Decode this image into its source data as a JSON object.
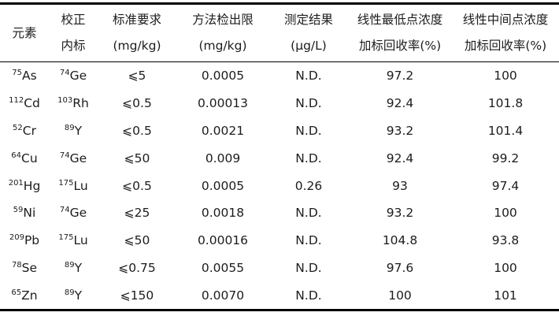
{
  "page": {
    "background_color": "#ffffff",
    "text_color": "#1c1c1c",
    "rule_color": "#000000"
  },
  "chart_data": {
    "type": "table",
    "title": "",
    "layout": {
      "style": "three-line booktabs table",
      "grid": "no vertical rules; thick top and bottom rules, thin rule under header",
      "columns_count": 7,
      "rows_count": 9
    },
    "headers": [
      {
        "line1": "元素",
        "line2": ""
      },
      {
        "line1": "校正",
        "line2": "内标"
      },
      {
        "line1": "标准要求",
        "line2": "(mg/kg)"
      },
      {
        "line1": "方法检出限",
        "line2": "(mg/kg)"
      },
      {
        "line1": "测定结果",
        "line2": "(μg/L)"
      },
      {
        "line1": "线性最低点浓度",
        "line2": "加标回收率(%)"
      },
      {
        "line1": "线性中间点浓度",
        "line2": "加标回收率(%)"
      }
    ],
    "rows": [
      {
        "isotope": "75",
        "element": "As",
        "istd_isotope": "74",
        "istd": "Ge",
        "standard_limit": "⩽5",
        "detection_limit": "0.0005",
        "result": "N.D.",
        "recovery_low": "97.2",
        "recovery_mid": "100"
      },
      {
        "isotope": "112",
        "element": "Cd",
        "istd_isotope": "103",
        "istd": "Rh",
        "standard_limit": "⩽0.5",
        "detection_limit": "0.00013",
        "result": "N.D.",
        "recovery_low": "92.4",
        "recovery_mid": "101.8"
      },
      {
        "isotope": "52",
        "element": "Cr",
        "istd_isotope": "89",
        "istd": "Y",
        "standard_limit": "⩽0.5",
        "detection_limit": "0.0021",
        "result": "N.D.",
        "recovery_low": "93.2",
        "recovery_mid": "101.4"
      },
      {
        "isotope": "64",
        "element": "Cu",
        "istd_isotope": "74",
        "istd": "Ge",
        "standard_limit": "⩽50",
        "detection_limit": "0.009",
        "result": "N.D.",
        "recovery_low": "92.4",
        "recovery_mid": "99.2"
      },
      {
        "isotope": "201",
        "element": "Hg",
        "istd_isotope": "175",
        "istd": "Lu",
        "standard_limit": "⩽0.5",
        "detection_limit": "0.0005",
        "result": "0.26",
        "recovery_low": "93",
        "recovery_mid": "97.4"
      },
      {
        "isotope": "59",
        "element": "Ni",
        "istd_isotope": "74",
        "istd": "Ge",
        "standard_limit": "⩽25",
        "detection_limit": "0.0018",
        "result": "N.D.",
        "recovery_low": "93.2",
        "recovery_mid": "100"
      },
      {
        "isotope": "209",
        "element": "Pb",
        "istd_isotope": "175",
        "istd": "Lu",
        "standard_limit": "⩽50",
        "detection_limit": "0.00016",
        "result": "N.D.",
        "recovery_low": "104.8",
        "recovery_mid": "93.8"
      },
      {
        "isotope": "78",
        "element": "Se",
        "istd_isotope": "89",
        "istd": "Y",
        "standard_limit": "⩽0.75",
        "detection_limit": "0.0055",
        "result": "N.D.",
        "recovery_low": "97.6",
        "recovery_mid": "100"
      },
      {
        "isotope": "65",
        "element": "Zn",
        "istd_isotope": "89",
        "istd": "Y",
        "standard_limit": "⩽150",
        "detection_limit": "0.0070",
        "result": "N.D.",
        "recovery_low": "100",
        "recovery_mid": "101"
      }
    ]
  }
}
